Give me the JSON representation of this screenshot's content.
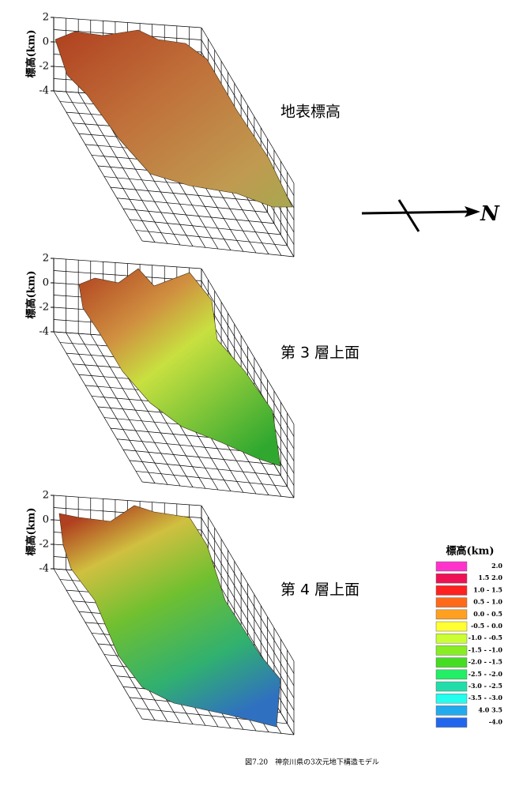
{
  "panels": [
    {
      "axis_label": "標高(km)",
      "ticks": [
        "2",
        "0",
        "-2",
        "-4"
      ],
      "title": "地表標高"
    },
    {
      "axis_label": "標高(km)",
      "ticks": [
        "2",
        "0",
        "-2",
        "-4"
      ],
      "title": "第 3 層上面"
    },
    {
      "axis_label": "標高(km)",
      "ticks": [
        "2",
        "0",
        "-2",
        "-4"
      ],
      "title": "第 4 層上面"
    }
  ],
  "north_label": "N",
  "legend": {
    "title": "標高(km)",
    "entries": [
      {
        "label": "2.0",
        "color": "#ff33cc"
      },
      {
        "label": "1.5 2.0",
        "color": "#ee1155"
      },
      {
        "label": "1.0 - 1.5",
        "color": "#ff2020"
      },
      {
        "label": "0.5 - 1.0",
        "color": "#ff6a1a"
      },
      {
        "label": "0.0 - 0.5",
        "color": "#ffa020"
      },
      {
        "label": "-0.5 - 0.0",
        "color": "#ffff33"
      },
      {
        "label": "-1.0 - -0.5",
        "color": "#ccff33"
      },
      {
        "label": "-1.5 - -1.0",
        "color": "#88ee22"
      },
      {
        "label": "-2.0 - -1.5",
        "color": "#44dd22"
      },
      {
        "label": "-2.5 - -2.0",
        "color": "#22ee66"
      },
      {
        "label": "-3.0 - -2.5",
        "color": "#22ddaa"
      },
      {
        "label": "-3.5 - -3.0",
        "color": "#22ffee"
      },
      {
        "label": "4.0 3.5",
        "color": "#22aaee"
      },
      {
        "label": "-4.0",
        "color": "#2266ee"
      }
    ]
  },
  "caption": "図7.20　神奈川県の3次元地下構造モデル"
}
